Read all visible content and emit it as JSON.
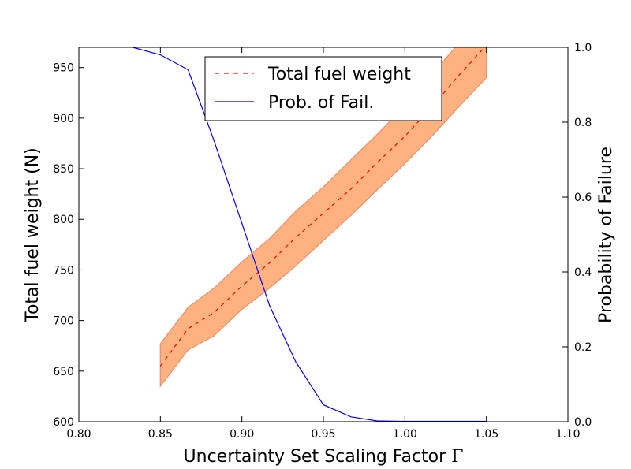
{
  "chart_data": {
    "type": "line",
    "xlabel": "Uncertainty Set Scaling Factor",
    "xlabel_symbol": "Γ",
    "ylabel_left": "Total fuel weight (N)",
    "ylabel_right": "Probability of Failure",
    "xlim": [
      0.8,
      1.1
    ],
    "ylim_left": [
      600,
      970
    ],
    "ylim_right": [
      0.0,
      1.0
    ],
    "x_ticks": [
      "0.80",
      "0.85",
      "0.90",
      "0.95",
      "1.00",
      "1.05",
      "1.10"
    ],
    "y_ticks_left": [
      "600",
      "650",
      "700",
      "750",
      "800",
      "850",
      "900",
      "950"
    ],
    "y_ticks_right": [
      "0.0",
      "0.2",
      "0.4",
      "0.6",
      "0.8",
      "1.0"
    ],
    "legend_position": "top-center",
    "series": [
      {
        "name": "Total fuel weight",
        "axis": "left",
        "style": "dashed",
        "color": "#ff0000",
        "x": [
          0.85,
          0.867,
          0.883,
          0.9,
          0.917,
          0.933,
          0.95,
          0.967,
          0.983,
          1.0,
          1.017,
          1.033,
          1.05
        ],
        "y": [
          655,
          692,
          708,
          734,
          757,
          782,
          806,
          830,
          856,
          882,
          912,
          942,
          972
        ]
      },
      {
        "name": "Prob. of Fail.",
        "axis": "right",
        "style": "solid",
        "color": "#0000ff",
        "x": [
          0.8,
          0.817,
          0.833,
          0.85,
          0.867,
          0.883,
          0.9,
          0.917,
          0.933,
          0.95,
          0.967,
          0.983,
          1.0,
          1.017,
          1.033,
          1.05
        ],
        "y": [
          1.06,
          1.03,
          1.0,
          0.98,
          0.94,
          0.75,
          0.53,
          0.31,
          0.16,
          0.045,
          0.013,
          0.002,
          0.001,
          0.001,
          0.001,
          0.001
        ]
      }
    ],
    "band": {
      "axis": "left",
      "color": "#ffb27f",
      "edge_color": "#e8906a",
      "x": [
        0.85,
        0.867,
        0.883,
        0.9,
        0.917,
        0.933,
        0.95,
        0.967,
        0.983,
        1.0,
        1.017,
        1.033,
        1.05
      ],
      "upper": [
        677,
        713,
        732,
        758,
        781,
        808,
        832,
        859,
        884,
        912,
        944,
        974,
        1000
      ],
      "lower": [
        635,
        671,
        685,
        711,
        732,
        754,
        779,
        804,
        829,
        855,
        883,
        911,
        940
      ]
    }
  }
}
